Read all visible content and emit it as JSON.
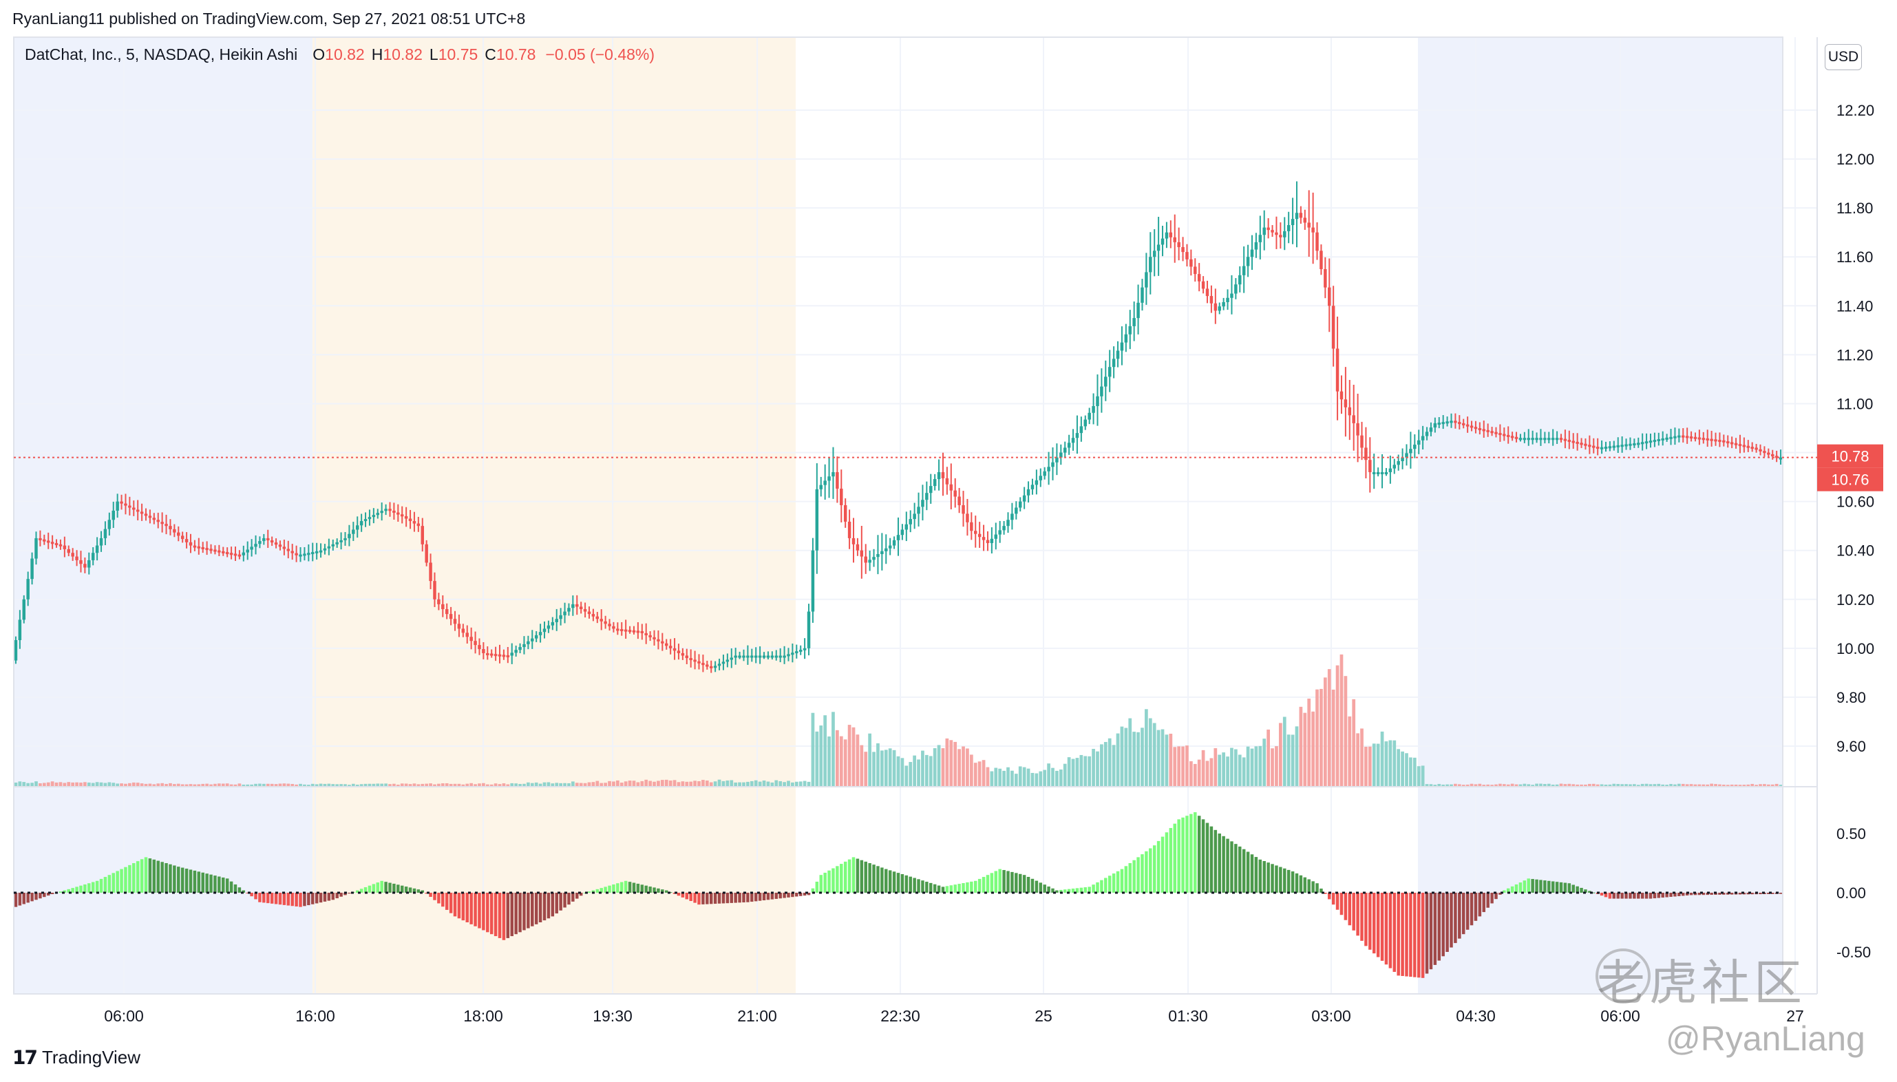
{
  "header": {
    "publisher_line": "RyanLiang11 published on TradingView.com, Sep 27, 2021 08:51 UTC+8"
  },
  "legend": {
    "symbol": "DatChat, Inc., 5, NASDAQ, Heikin Ashi",
    "o_key": "O",
    "o_val": "10.82",
    "h_key": "H",
    "h_val": "10.82",
    "l_key": "L",
    "l_val": "10.75",
    "c_key": "C",
    "c_val": "10.78",
    "change": "−0.05 (−0.48%)"
  },
  "currency_badge": "USD",
  "footer": {
    "brand": "TradingView"
  },
  "watermark": {
    "main": "老虎社区",
    "sub": "@RyanLiang"
  },
  "colors": {
    "up": "#26a69a",
    "down": "#ef5350",
    "up_volume": "#8fd3cc",
    "down_volume": "#f5a5a3",
    "osc_up_strong": "#7cfc7c",
    "osc_up_weak": "#4c9a4c",
    "osc_down_strong": "#ef5350",
    "osc_down_weak": "#a04848",
    "session_pre": "#eef2fc",
    "session_regular": "#fdf5e8",
    "price_line": "#ef5350"
  },
  "chart_data": [
    {
      "type": "candlestick",
      "name": "DatChat, Inc., 5, NASDAQ, Heikin Ashi",
      "x_tick_labels": [
        "06:00",
        "16:00",
        "18:00",
        "19:30",
        "21:00",
        "22:30",
        "25",
        "01:30",
        "03:00",
        "04:30",
        "06:00",
        "27"
      ],
      "y_tick_labels": [
        "12.20",
        "12.00",
        "11.80",
        "11.60",
        "11.40",
        "11.20",
        "11.00",
        "10.80",
        "10.60",
        "10.40",
        "10.20",
        "10.00",
        "9.80",
        "9.60"
      ],
      "ylim": [
        9.45,
        12.45
      ],
      "last_price_labels": [
        "10.78",
        "10.76"
      ],
      "last_price": 10.78,
      "sessions": [
        "pre-market",
        "regular",
        "post-market",
        "pre-market"
      ],
      "anchors": [
        [
          0,
          9.95
        ],
        [
          6,
          10.45
        ],
        [
          12,
          10.42
        ],
        [
          18,
          10.33
        ],
        [
          22,
          10.45
        ],
        [
          26,
          10.6
        ],
        [
          32,
          10.55
        ],
        [
          38,
          10.5
        ],
        [
          44,
          10.42
        ],
        [
          50,
          10.4
        ],
        [
          56,
          10.38
        ],
        [
          62,
          10.45
        ],
        [
          70,
          10.38
        ],
        [
          76,
          10.4
        ],
        [
          82,
          10.45
        ],
        [
          86,
          10.52
        ],
        [
          92,
          10.57
        ],
        [
          96,
          10.54
        ],
        [
          100,
          10.5
        ],
        [
          104,
          10.2
        ],
        [
          110,
          10.08
        ],
        [
          116,
          9.98
        ],
        [
          122,
          9.97
        ],
        [
          128,
          10.04
        ],
        [
          134,
          10.12
        ],
        [
          138,
          10.18
        ],
        [
          142,
          10.14
        ],
        [
          148,
          10.08
        ],
        [
          154,
          10.07
        ],
        [
          160,
          10.02
        ],
        [
          166,
          9.96
        ],
        [
          172,
          9.92
        ],
        [
          178,
          9.97
        ],
        [
          184,
          9.97
        ],
        [
          190,
          9.97
        ],
        [
          195,
          10.0
        ],
        [
          196,
          10.15
        ],
        [
          198,
          10.65
        ],
        [
          202,
          10.72
        ],
        [
          206,
          10.45
        ],
        [
          210,
          10.35
        ],
        [
          216,
          10.42
        ],
        [
          222,
          10.55
        ],
        [
          228,
          10.72
        ],
        [
          232,
          10.62
        ],
        [
          236,
          10.48
        ],
        [
          240,
          10.43
        ],
        [
          244,
          10.5
        ],
        [
          250,
          10.65
        ],
        [
          256,
          10.76
        ],
        [
          262,
          10.88
        ],
        [
          266,
          10.99
        ],
        [
          270,
          11.15
        ],
        [
          276,
          11.35
        ],
        [
          280,
          11.6
        ],
        [
          284,
          11.7
        ],
        [
          288,
          11.62
        ],
        [
          292,
          11.5
        ],
        [
          296,
          11.38
        ],
        [
          300,
          11.45
        ],
        [
          304,
          11.6
        ],
        [
          308,
          11.72
        ],
        [
          312,
          11.68
        ],
        [
          316,
          11.78
        ],
        [
          320,
          11.7
        ],
        [
          324,
          11.4
        ],
        [
          326,
          11.05
        ],
        [
          330,
          10.92
        ],
        [
          334,
          10.72
        ],
        [
          338,
          10.72
        ],
        [
          342,
          10.78
        ],
        [
          346,
          10.85
        ],
        [
          350,
          10.92
        ],
        [
          354,
          10.93
        ],
        [
          360,
          10.9
        ],
        [
          370,
          10.86
        ],
        [
          380,
          10.86
        ],
        [
          390,
          10.82
        ],
        [
          400,
          10.84
        ],
        [
          410,
          10.87
        ],
        [
          420,
          10.85
        ],
        [
          428,
          10.82
        ],
        [
          434,
          10.78
        ]
      ],
      "volume": [
        [
          0,
          0.02
        ],
        [
          20,
          0.015
        ],
        [
          40,
          0.012
        ],
        [
          80,
          0.01
        ],
        [
          120,
          0.012
        ],
        [
          160,
          0.025
        ],
        [
          195,
          0.02
        ],
        [
          196,
          0.28
        ],
        [
          210,
          0.18
        ],
        [
          220,
          0.1
        ],
        [
          230,
          0.18
        ],
        [
          240,
          0.08
        ],
        [
          250,
          0.06
        ],
        [
          260,
          0.1
        ],
        [
          270,
          0.2
        ],
        [
          280,
          0.28
        ],
        [
          290,
          0.12
        ],
        [
          300,
          0.14
        ],
        [
          310,
          0.2
        ],
        [
          316,
          0.3
        ],
        [
          322,
          0.38
        ],
        [
          326,
          0.45
        ],
        [
          332,
          0.2
        ],
        [
          340,
          0.18
        ],
        [
          346,
          0.08
        ],
        [
          347,
          0.01
        ],
        [
          434,
          0.01
        ]
      ],
      "bar_count": 435
    },
    {
      "type": "bar",
      "name": "oscillator",
      "y_tick_labels": [
        "0.50",
        "0.00",
        "-0.50"
      ],
      "ylim": [
        -0.9,
        0.9
      ],
      "anchors": [
        [
          0,
          -0.12
        ],
        [
          10,
          0.0
        ],
        [
          20,
          0.1
        ],
        [
          32,
          0.3
        ],
        [
          40,
          0.22
        ],
        [
          52,
          0.12
        ],
        [
          60,
          -0.08
        ],
        [
          70,
          -0.12
        ],
        [
          78,
          -0.06
        ],
        [
          90,
          0.1
        ],
        [
          100,
          0.02
        ],
        [
          108,
          -0.2
        ],
        [
          120,
          -0.4
        ],
        [
          132,
          -0.2
        ],
        [
          140,
          0.0
        ],
        [
          150,
          0.1
        ],
        [
          160,
          0.02
        ],
        [
          168,
          -0.1
        ],
        [
          180,
          -0.08
        ],
        [
          195,
          -0.02
        ],
        [
          198,
          0.15
        ],
        [
          206,
          0.3
        ],
        [
          214,
          0.2
        ],
        [
          228,
          0.05
        ],
        [
          236,
          0.1
        ],
        [
          242,
          0.2
        ],
        [
          248,
          0.15
        ],
        [
          256,
          0.02
        ],
        [
          264,
          0.05
        ],
        [
          272,
          0.2
        ],
        [
          280,
          0.4
        ],
        [
          286,
          0.62
        ],
        [
          290,
          0.68
        ],
        [
          296,
          0.5
        ],
        [
          306,
          0.28
        ],
        [
          314,
          0.18
        ],
        [
          320,
          0.08
        ],
        [
          324,
          -0.1
        ],
        [
          332,
          -0.45
        ],
        [
          340,
          -0.7
        ],
        [
          346,
          -0.72
        ],
        [
          352,
          -0.5
        ],
        [
          360,
          -0.2
        ],
        [
          366,
          0.02
        ],
        [
          372,
          0.12
        ],
        [
          382,
          0.08
        ],
        [
          392,
          -0.05
        ],
        [
          402,
          -0.05
        ],
        [
          412,
          -0.02
        ],
        [
          434,
          -0.01
        ]
      ]
    }
  ]
}
